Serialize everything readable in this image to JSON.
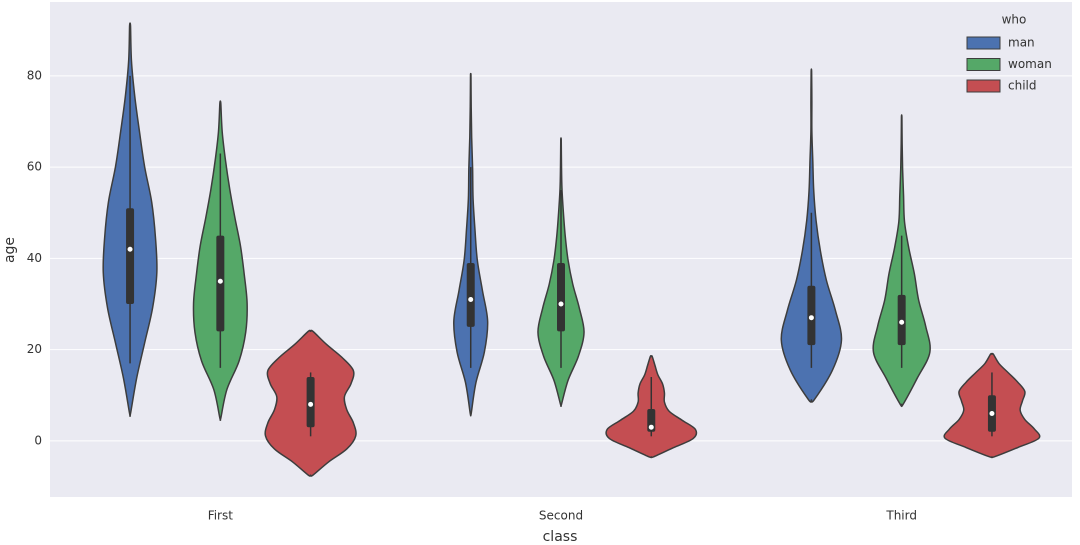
{
  "chart_data": {
    "type": "violin",
    "xlabel": "class",
    "ylabel": "age",
    "categories": [
      "First",
      "Second",
      "Third"
    ],
    "ylim": [
      -12.3,
      96.2
    ],
    "yticks": [
      0,
      20,
      40,
      60,
      80
    ],
    "grid": true,
    "legend_title": "who",
    "legend_position": "upper-right",
    "series": [
      {
        "name": "man",
        "color": "#4c72b0",
        "violins": [
          {
            "min": 6,
            "max": 91,
            "whisker_low": 17,
            "q1": 30,
            "median": 42,
            "q3": 51,
            "whisker_high": 80,
            "density": [
              0.01,
              0.14,
              0.31,
              0.48,
              0.57,
              0.54,
              0.46,
              0.31,
              0.2,
              0.1,
              0.03,
              0.01
            ]
          },
          {
            "min": 6,
            "max": 80,
            "whisker_low": 16,
            "q1": 25,
            "median": 31,
            "q3": 39,
            "whisker_high": 60,
            "density": [
              0.01,
              0.11,
              0.29,
              0.36,
              0.25,
              0.14,
              0.09,
              0.05,
              0.04,
              0.02,
              0.01,
              0.005
            ]
          },
          {
            "min": 9,
            "max": 81,
            "whisker_low": 16,
            "q1": 21,
            "median": 27,
            "q3": 34,
            "whisker_high": 50,
            "density": [
              0.06,
              0.45,
              0.64,
              0.51,
              0.32,
              0.19,
              0.1,
              0.05,
              0.03,
              0.01,
              0.01,
              0.005
            ]
          }
        ]
      },
      {
        "name": "woman",
        "color": "#55a868",
        "violins": [
          {
            "min": 5,
            "max": 74,
            "whisker_low": 16,
            "q1": 24,
            "median": 35,
            "q3": 45,
            "whisker_high": 63,
            "density": [
              0.01,
              0.14,
              0.4,
              0.54,
              0.57,
              0.51,
              0.43,
              0.31,
              0.2,
              0.11,
              0.04,
              0.01
            ]
          },
          {
            "min": 8,
            "max": 66,
            "whisker_low": 16,
            "q1": 24,
            "median": 30,
            "q3": 39,
            "whisker_high": 55,
            "density": [
              0.01,
              0.15,
              0.37,
              0.49,
              0.39,
              0.25,
              0.15,
              0.09,
              0.05,
              0.02,
              0.01,
              0.005
            ]
          },
          {
            "min": 8,
            "max": 71,
            "whisker_low": 16,
            "q1": 21,
            "median": 26,
            "q3": 32,
            "whisker_high": 45,
            "density": [
              0.03,
              0.33,
              0.6,
              0.51,
              0.36,
              0.27,
              0.15,
              0.06,
              0.04,
              0.02,
              0.01,
              0.005
            ]
          }
        ]
      },
      {
        "name": "child",
        "color": "#c44e52",
        "violins": [
          {
            "min": -7.5,
            "max": 24,
            "whisker_low": 1,
            "q1": 3,
            "median": 8,
            "q3": 14,
            "whisker_high": 15,
            "density": [
              0.05,
              0.38,
              0.77,
              0.96,
              0.91,
              0.77,
              0.72,
              0.86,
              0.91,
              0.67,
              0.34,
              0.05
            ]
          },
          {
            "min": -3.5,
            "max": 18.5,
            "whisker_low": 1,
            "q1": 2,
            "median": 3,
            "q3": 7,
            "whisker_high": 14,
            "density": [
              0.05,
              0.47,
              0.89,
              0.94,
              0.66,
              0.38,
              0.28,
              0.28,
              0.24,
              0.14,
              0.08,
              0.02
            ]
          },
          {
            "min": -3.5,
            "max": 19,
            "whisker_low": 1,
            "q1": 2,
            "median": 6,
            "q3": 10,
            "whisker_high": 15,
            "density": [
              0.05,
              0.55,
              1.0,
              0.9,
              0.7,
              0.6,
              0.65,
              0.7,
              0.55,
              0.35,
              0.15,
              0.03
            ]
          }
        ]
      }
    ]
  }
}
